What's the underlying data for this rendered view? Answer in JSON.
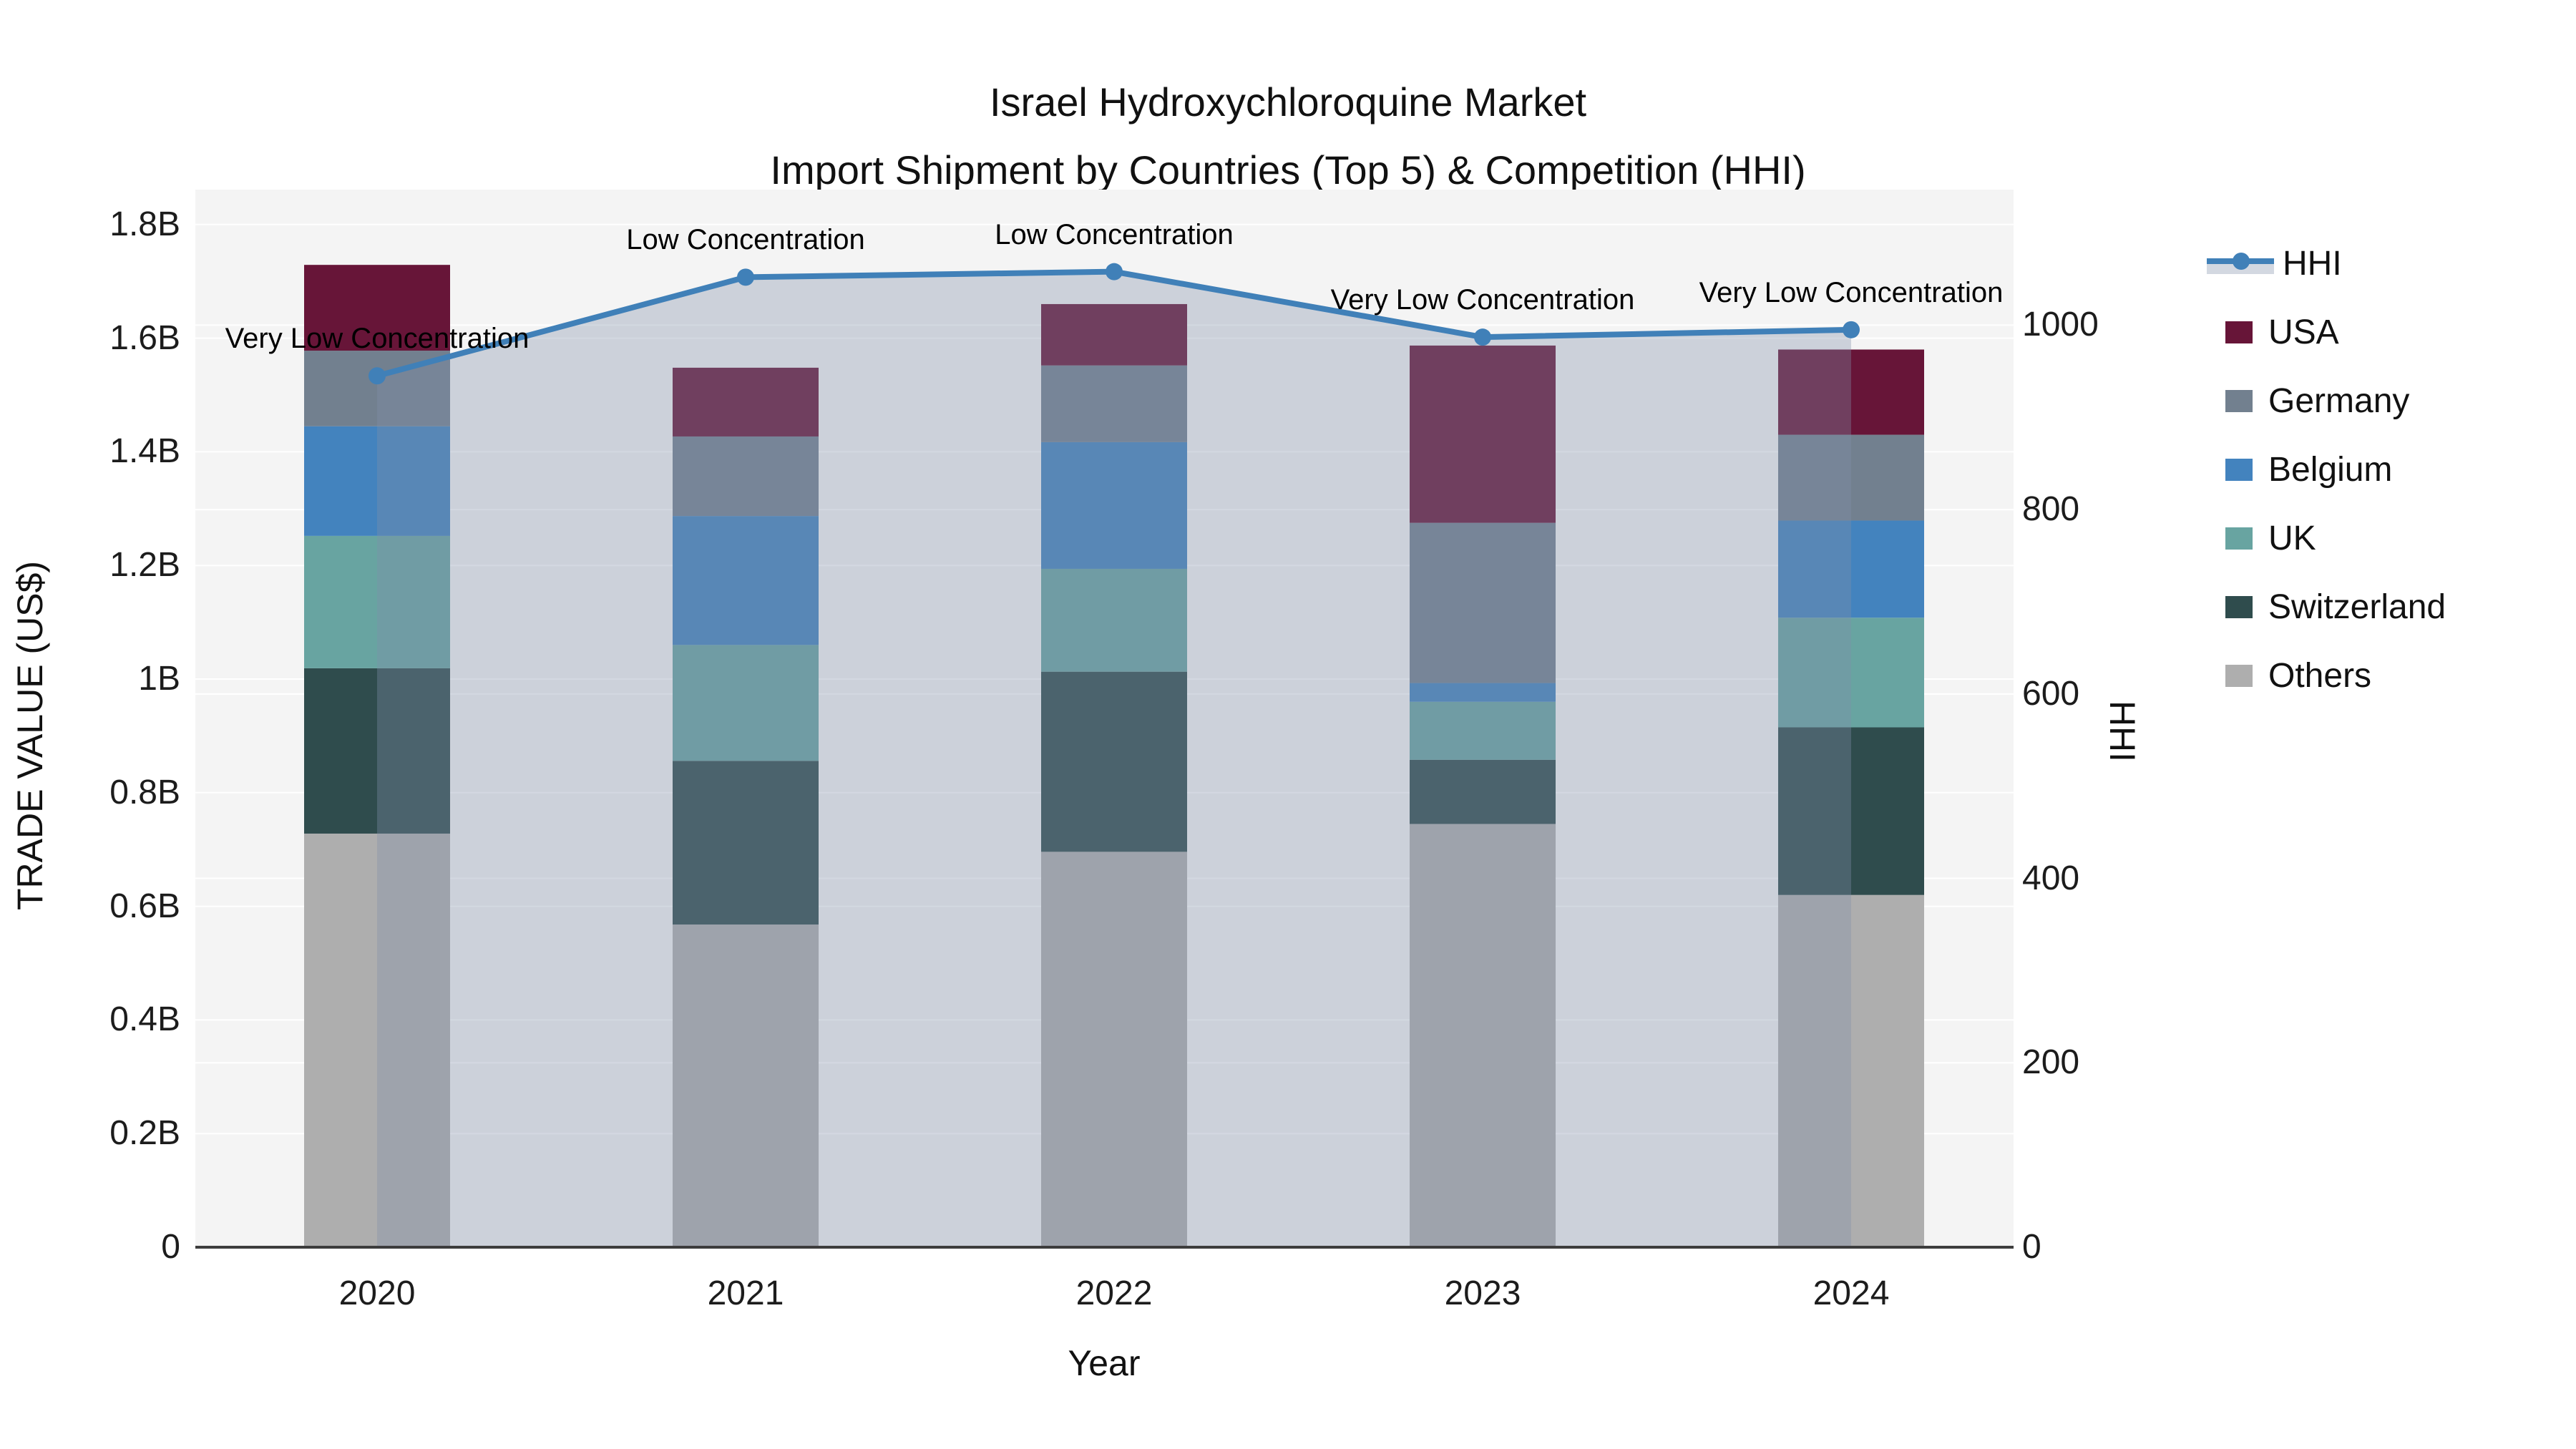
{
  "title": {
    "line1": "Israel Hydroxychloroquine Market",
    "line2": "Import Shipment by Countries (Top 5) & Competition (HHI)"
  },
  "axes": {
    "x": {
      "label": "Year",
      "tick_labels": [
        "2020",
        "2021",
        "2022",
        "2023",
        "2024"
      ]
    },
    "y_left": {
      "label": "TRADE VALUE (US$)",
      "tick_labels": [
        "1.8B",
        "1.6B",
        "1.4B",
        "1.2B",
        "1B",
        "0.8B",
        "0.6B",
        "0.4B",
        "0.2B",
        "0"
      ],
      "tick_values": [
        1.8,
        1.6,
        1.4,
        1.2,
        1.0,
        0.8,
        0.6,
        0.4,
        0.2,
        0
      ]
    },
    "y_right": {
      "label": "HHI",
      "tick_labels": [
        "1000",
        "800",
        "600",
        "400",
        "200",
        "0"
      ],
      "tick_values": [
        1000,
        800,
        600,
        400,
        200,
        0
      ]
    }
  },
  "legend": {
    "items": [
      {
        "label": "HHI",
        "color": "#4080b8",
        "swatch": "line"
      },
      {
        "label": "USA",
        "color": "#671538",
        "swatch": "square"
      },
      {
        "label": "Germany",
        "color": "#72808f",
        "swatch": "square"
      },
      {
        "label": "Belgium",
        "color": "#4383be",
        "swatch": "square"
      },
      {
        "label": "UK",
        "color": "#68a4a1",
        "swatch": "square"
      },
      {
        "label": "Switzerland",
        "color": "#2f4c4d",
        "swatch": "square"
      },
      {
        "label": "Others",
        "color": "#aeaeae",
        "swatch": "square"
      }
    ]
  },
  "chart_data": {
    "type": "bar",
    "subtype": "stacked-bars-with-line-overlay",
    "title": "Israel Hydroxychloroquine Market — Import Shipment by Countries (Top 5) & Competition (HHI)",
    "xlabel": "Year",
    "ylabel_left": "TRADE VALUE (US$)",
    "ylabel_right": "HHI",
    "categories": [
      "2020",
      "2021",
      "2022",
      "2023",
      "2024"
    ],
    "units": "billions USD",
    "ylim_left": [
      0,
      1.861
    ],
    "ylim_right": [
      0,
      1147
    ],
    "grid": "on",
    "legend_position": "right",
    "series": [
      {
        "name": "USA",
        "color": "#671538",
        "values": [
          0.151,
          0.121,
          0.108,
          0.312,
          0.15
        ]
      },
      {
        "name": "Germany",
        "color": "#72808f",
        "values": [
          0.133,
          0.14,
          0.135,
          0.282,
          0.151
        ]
      },
      {
        "name": "Belgium",
        "color": "#4383be",
        "values": [
          0.193,
          0.227,
          0.223,
          0.033,
          0.171
        ]
      },
      {
        "name": "UK",
        "color": "#68a4a1",
        "values": [
          0.233,
          0.204,
          0.181,
          0.102,
          0.193
        ]
      },
      {
        "name": "Switzerland",
        "color": "#2f4c4d",
        "values": [
          0.291,
          0.288,
          0.317,
          0.113,
          0.295
        ]
      },
      {
        "name": "Others",
        "color": "#aeaeae",
        "values": [
          0.728,
          0.568,
          0.696,
          0.745,
          0.62
        ]
      }
    ],
    "stack_order_bottom_to_top": [
      "Others",
      "Switzerland",
      "UK",
      "Belgium",
      "Germany",
      "USA"
    ],
    "bar_totals": [
      1.729,
      1.548,
      1.66,
      1.587,
      1.58
    ],
    "hhi": {
      "name": "HHI",
      "axis": "right",
      "line_color": "#4080b8",
      "area_fill": "rgba(130,142,170,0.35)",
      "values": [
        945,
        1052,
        1058,
        987,
        995
      ],
      "annotations": [
        "Very Low Concentration",
        "Low Concentration",
        "Low Concentration",
        "Very Low Concentration",
        "Very Low Concentration"
      ]
    },
    "colors": {
      "plot_background": "#f4f4f4",
      "gridline": "#ffffff",
      "axis_line": "#3d3d3d"
    }
  }
}
